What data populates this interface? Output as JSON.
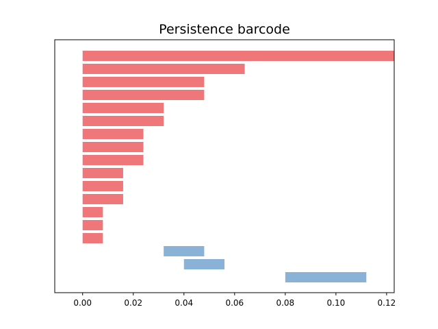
{
  "chart_data": {
    "type": "bar",
    "orientation": "horizontal",
    "title": "Persistence barcode",
    "xlabel": "",
    "ylabel": "",
    "xlim": [
      -0.011,
      0.123
    ],
    "x_ticks": [
      0.0,
      0.02,
      0.04,
      0.06,
      0.08,
      0.1,
      0.12
    ],
    "x_tick_labels": [
      "0.00",
      "0.02",
      "0.04",
      "0.06",
      "0.08",
      "0.10",
      "0.12"
    ],
    "y_ticks_shown": false,
    "grid": false,
    "legend": "none",
    "series": [
      {
        "color": "#f07779",
        "bars": [
          {
            "birth": 0.0,
            "death": 0.123
          },
          {
            "birth": 0.0,
            "death": 0.064
          },
          {
            "birth": 0.0,
            "death": 0.048
          },
          {
            "birth": 0.0,
            "death": 0.048
          },
          {
            "birth": 0.0,
            "death": 0.032
          },
          {
            "birth": 0.0,
            "death": 0.032
          },
          {
            "birth": 0.0,
            "death": 0.024
          },
          {
            "birth": 0.0,
            "death": 0.024
          },
          {
            "birth": 0.0,
            "death": 0.024
          },
          {
            "birth": 0.0,
            "death": 0.016
          },
          {
            "birth": 0.0,
            "death": 0.016
          },
          {
            "birth": 0.0,
            "death": 0.016
          },
          {
            "birth": 0.0,
            "death": 0.008
          },
          {
            "birth": 0.0,
            "death": 0.008
          },
          {
            "birth": 0.0,
            "death": 0.008
          }
        ]
      },
      {
        "color": "#8ab2d6",
        "bars": [
          {
            "birth": 0.032,
            "death": 0.048
          },
          {
            "birth": 0.04,
            "death": 0.056
          },
          {
            "birth": 0.08,
            "death": 0.112
          }
        ]
      }
    ]
  }
}
